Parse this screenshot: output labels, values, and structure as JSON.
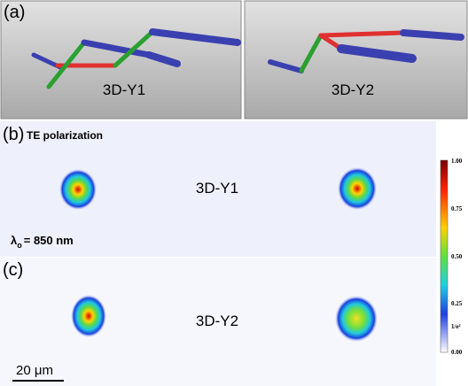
{
  "panel_a": {
    "label": "(a)",
    "left_caption": "3D-Y1",
    "right_caption": "3D-Y2"
  },
  "panel_b": {
    "label": "(b)",
    "polarization": "TE polarization",
    "caption": "3D-Y1",
    "wavelength": {
      "symbol": "λ",
      "subscript": "o",
      "text": "= 850 nm"
    }
  },
  "panel_c": {
    "label": "(c)",
    "caption": "3D-Y2",
    "scale_bar": "20 μm"
  },
  "colorbar": {
    "labels": [
      "1.00",
      "0.75",
      "0.50",
      "0.25",
      "1/e²",
      "0.00"
    ]
  }
}
